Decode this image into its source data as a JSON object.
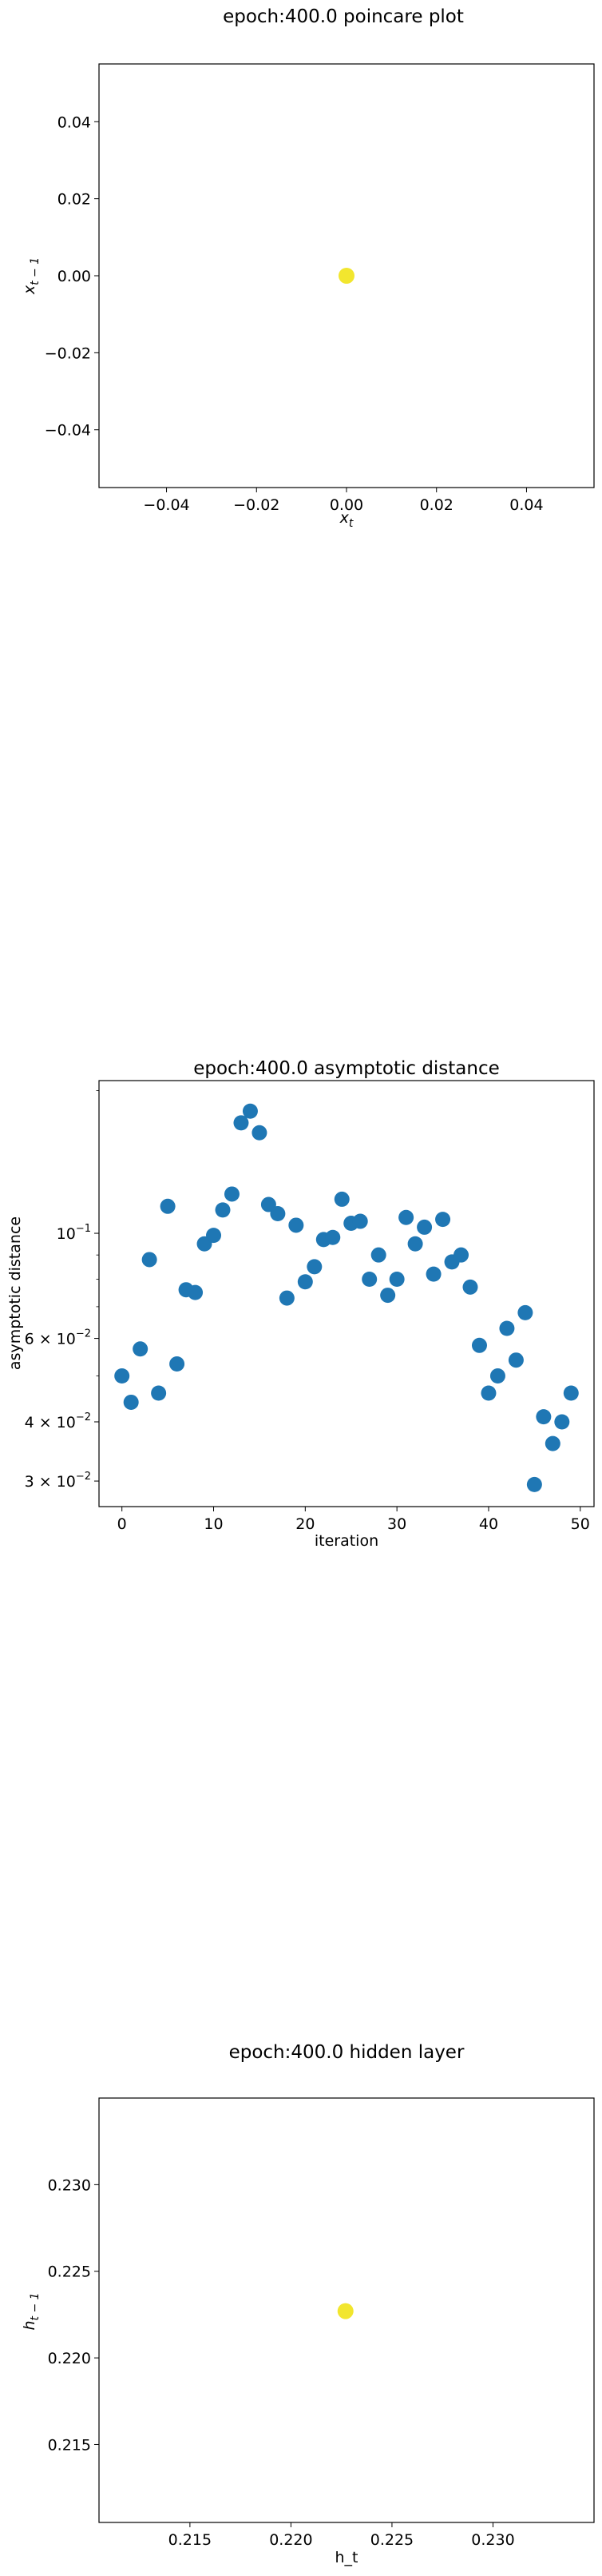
{
  "chart_data": [
    {
      "type": "scatter",
      "title": "epoch:400.0 poincare plot",
      "xlabel": "x",
      "xlabel_sub": "t",
      "ylabel": "x",
      "ylabel_sub": "t − 1",
      "xlim": [
        -0.055,
        0.055
      ],
      "ylim": [
        -0.055,
        0.055
      ],
      "xticks": [
        -0.04,
        -0.02,
        0.0,
        0.02,
        0.04
      ],
      "xtick_labels": [
        "−0.04",
        "−0.02",
        "0.00",
        "0.02",
        "0.04"
      ],
      "yticks": [
        -0.04,
        -0.02,
        0.0,
        0.02,
        0.04
      ],
      "ytick_labels": [
        "−0.04",
        "−0.02",
        "0.00",
        "0.02",
        "0.04"
      ],
      "points": [
        {
          "x": 0.0,
          "y": 0.0
        }
      ],
      "point_color": "#f2e62e"
    },
    {
      "type": "scatter",
      "title": "epoch:400.0 asymptotic distance",
      "xlabel": "iteration",
      "ylabel": "asymptotic distance",
      "yscale": "log",
      "xlim": [
        -2.5,
        51.5
      ],
      "ylim": [
        0.0265,
        0.21
      ],
      "xticks": [
        0,
        10,
        20,
        30,
        40,
        50
      ],
      "xtick_labels": [
        "0",
        "10",
        "20",
        "30",
        "40",
        "50"
      ],
      "yticks": [
        0.03,
        0.04,
        0.06,
        0.1
      ],
      "ytick_labels": [
        {
          "base": "3 × 10",
          "exp": "−2"
        },
        {
          "base": "4 × 10",
          "exp": "−2"
        },
        {
          "base": "6 × 10",
          "exp": "−2"
        },
        {
          "base": "10",
          "exp": "−1"
        }
      ],
      "y_minor_ticks": [
        0.05,
        0.07,
        0.08,
        0.09,
        0.2
      ],
      "point_color": "#1f77b4",
      "x": [
        0,
        1,
        2,
        3,
        4,
        5,
        6,
        7,
        8,
        9,
        10,
        11,
        12,
        13,
        14,
        15,
        16,
        17,
        18,
        19,
        20,
        21,
        22,
        23,
        24,
        25,
        26,
        27,
        28,
        29,
        30,
        31,
        32,
        33,
        34,
        35,
        36,
        37,
        38,
        39,
        40,
        41,
        42,
        43,
        44,
        45,
        46,
        47,
        48,
        49
      ],
      "y": [
        0.05,
        0.044,
        0.057,
        0.088,
        0.046,
        0.114,
        0.053,
        0.076,
        0.075,
        0.095,
        0.099,
        0.112,
        0.121,
        0.171,
        0.181,
        0.163,
        0.115,
        0.11,
        0.073,
        0.104,
        0.079,
        0.085,
        0.097,
        0.098,
        0.118,
        0.105,
        0.106,
        0.08,
        0.09,
        0.074,
        0.08,
        0.108,
        0.095,
        0.103,
        0.082,
        0.107,
        0.087,
        0.09,
        0.077,
        0.058,
        0.046,
        0.05,
        0.063,
        0.054,
        0.068,
        0.0295,
        0.041,
        0.036,
        0.04,
        0.046
      ]
    },
    {
      "type": "scatter",
      "title": "epoch:400.0 hidden layer",
      "xlabel": "h_t",
      "ylabel": "h",
      "ylabel_sub": "t − 1",
      "xlim": [
        0.2105,
        0.235
      ],
      "ylim": [
        0.2105,
        0.235
      ],
      "xticks": [
        0.215,
        0.22,
        0.225,
        0.23
      ],
      "xtick_labels": [
        "0.215",
        "0.220",
        "0.225",
        "0.230"
      ],
      "yticks": [
        0.215,
        0.22,
        0.225,
        0.23
      ],
      "ytick_labels": [
        "0.215",
        "0.220",
        "0.225",
        "0.230"
      ],
      "points": [
        {
          "x": 0.2227,
          "y": 0.2227
        }
      ],
      "point_color": "#f2e62e"
    }
  ]
}
